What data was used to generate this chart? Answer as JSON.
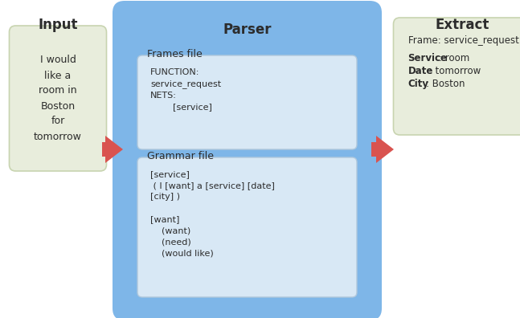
{
  "title": "Parser",
  "input_label": "Input",
  "extract_label": "Extract",
  "input_text": "I would\nlike a\nroom in\nBoston\nfor\ntomorrow",
  "frames_label": "Frames file",
  "frames_content": "FUNCTION:\nservice_request\nNETS:\n        [service]",
  "grammar_label": "Grammar file",
  "grammar_content": "[service]\n ( I [want] a [service] [date]\n[city] )\n\n[want]\n    (want)\n    (need)\n    (would like)",
  "extract_line1": "Frame: service_request",
  "extract_line2_bold": "Service",
  "extract_line2_rest": ": room",
  "extract_line3_bold": "Date",
  "extract_line3_rest": " : tomorrow",
  "extract_line4_bold": "City",
  "extract_line4_rest": ": Boston",
  "bg_color": "#ffffff",
  "parser_box_color": "#7eb6e8",
  "inner_box_color": "#d8e8f5",
  "input_box_color": "#e8eddc",
  "extract_box_color": "#e8eddc",
  "input_border_color": "#c8d4b0",
  "extract_border_color": "#c8d4b0",
  "inner_border_color": "#b0c8dc",
  "arrow_color": "#d9534f",
  "text_color": "#2c2c2c",
  "title_fontsize": 12,
  "label_fontsize": 9,
  "content_fontsize": 8,
  "input_label_fontsize": 12,
  "extract_label_fontsize": 12
}
